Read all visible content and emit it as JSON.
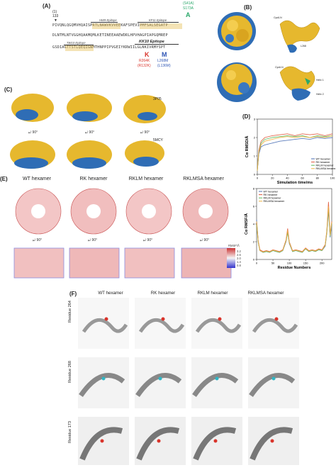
{
  "panelA": {
    "label": "(A)",
    "pos_marker": "(1)",
    "pos_number": "133",
    "epitopes": {
      "hw9": "HW9 Epitope",
      "kf11": "KF11 Epitope",
      "tw10": "TW10 Epitope",
      "kk10": "KK10 Epitope"
    },
    "mutations": {
      "s41a": "(S41A)",
      "s173a": "S173A",
      "a_letter": "A",
      "r264k": "R264K",
      "r132k": "(R132K)",
      "k_letter": "K",
      "l268m": "L268M",
      "l136m": "(L136M)",
      "m_letter": "M"
    },
    "seq1": "PIVQNLQGQMVHQAISPRTLNAWVKVVEEKAFSPEVIPMFSALSEGATP",
    "seq2": "DLNTMLNTVGGHQAAMQMLKETINEEAAEWDRLHPVHAGPIAPGQMREP",
    "seq3": "GSDIAGTTSTLQEQIGWMTHNPPIPVGEIYKRWIILGLNKIVRMYSPT"
  },
  "panelB": {
    "label": "(B)",
    "annotations": [
      "Cys6-N",
      "Cys6-N",
      "L268",
      "Helix 1",
      "Helix 2"
    ]
  },
  "panelC": {
    "label": "(C)",
    "pdb1": "3P05",
    "pdb2": "5MCY"
  },
  "panelD": {
    "label": "(D)"
  },
  "panelE": {
    "label": "(E)",
    "titles": [
      "WT hexamer",
      "RK hexamer",
      "RKLM hexamer",
      "RKLMSA hexamer"
    ],
    "rmsf_scale": "RMSF/Å",
    "scale_ticks": [
      "0.8",
      "1.4",
      "2.0",
      "2.6",
      "3.2"
    ]
  },
  "panelF": {
    "label": "(F)",
    "titles": [
      "WT hexamer",
      "RK hexamer",
      "RKLM hexamer",
      "RKLMSA hexamer"
    ],
    "rows": [
      "Residue 264",
      "Residue 268",
      "Residue 173"
    ]
  },
  "chart_data": [
    {
      "type": "line",
      "title": "",
      "xlabel": "Simulation time/ms",
      "ylabel": "Cα RMSD/Å",
      "xlim": [
        0,
        100
      ],
      "ylim": [
        0,
        3
      ],
      "xticks": [
        "0",
        "20",
        "40",
        "60",
        "80",
        "100"
      ],
      "yticks": [
        "0",
        "1",
        "2",
        "3"
      ],
      "legend_position": "bottom-right",
      "series": [
        {
          "name": "WT hexamer",
          "color": "#4a6fb5",
          "x": [
            0,
            2,
            5,
            10,
            20,
            30,
            40,
            50,
            60,
            70,
            80,
            90,
            100
          ],
          "values": [
            0.2,
            1.1,
            1.5,
            1.6,
            1.7,
            1.8,
            1.85,
            1.9,
            1.95,
            1.9,
            2.0,
            1.95,
            2.0
          ]
        },
        {
          "name": "RK hexamer",
          "color": "#e0563a",
          "x": [
            0,
            2,
            5,
            10,
            20,
            30,
            40,
            50,
            60,
            70,
            80,
            90,
            100
          ],
          "values": [
            0.2,
            1.3,
            1.8,
            2.0,
            2.1,
            2.15,
            2.2,
            2.1,
            2.2,
            2.15,
            2.2,
            2.1,
            2.2
          ]
        },
        {
          "name": "RKLM hexamer",
          "color": "#5cb85c",
          "x": [
            0,
            2,
            5,
            10,
            20,
            30,
            40,
            50,
            60,
            70,
            80,
            90,
            100
          ],
          "values": [
            0.2,
            1.2,
            1.7,
            1.9,
            2.0,
            2.05,
            2.1,
            2.05,
            2.1,
            2.0,
            2.1,
            2.05,
            2.1
          ]
        },
        {
          "name": "RKLMSA hexamer",
          "color": "#f0b040",
          "x": [
            0,
            2,
            5,
            10,
            20,
            30,
            40,
            50,
            60,
            70,
            80,
            90,
            100
          ],
          "values": [
            0.2,
            1.2,
            1.6,
            1.8,
            1.9,
            2.0,
            2.05,
            2.0,
            2.05,
            2.0,
            2.05,
            2.0,
            2.1
          ]
        }
      ]
    },
    {
      "type": "line",
      "title": "",
      "xlabel": "Residue Numbers",
      "ylabel": "Cα RMSF/Å",
      "xlim": [
        0,
        230
      ],
      "ylim": [
        0,
        8
      ],
      "xticks": [
        "0",
        "50",
        "100",
        "150",
        "200"
      ],
      "yticks": [
        "0",
        "2",
        "4",
        "6",
        "8"
      ],
      "legend_position": "top-left",
      "series": [
        {
          "name": "WT hexamer",
          "color": "#4a6fb5",
          "x": [
            0,
            5,
            10,
            20,
            30,
            40,
            50,
            60,
            70,
            80,
            90,
            95,
            100,
            110,
            120,
            130,
            140,
            150,
            160,
            170,
            180,
            190,
            200,
            210,
            215,
            220,
            225,
            230
          ],
          "values": [
            4.5,
            2.0,
            1.0,
            0.8,
            0.9,
            0.8,
            1.0,
            0.9,
            0.8,
            1.0,
            2.0,
            3.2,
            1.8,
            0.9,
            1.0,
            0.9,
            0.8,
            1.2,
            0.9,
            1.0,
            0.9,
            1.1,
            1.0,
            1.5,
            3.0,
            5.5,
            2.5,
            4.0
          ]
        },
        {
          "name": "RK hexamer",
          "color": "#e0563a",
          "x": [
            0,
            5,
            10,
            20,
            30,
            40,
            50,
            60,
            70,
            80,
            90,
            95,
            100,
            110,
            120,
            130,
            140,
            150,
            160,
            170,
            180,
            190,
            200,
            210,
            215,
            220,
            225,
            230
          ],
          "values": [
            4.2,
            2.1,
            1.1,
            0.9,
            1.0,
            0.9,
            1.1,
            1.0,
            0.9,
            1.1,
            2.2,
            3.5,
            2.0,
            1.0,
            1.1,
            1.0,
            0.9,
            1.3,
            1.0,
            1.1,
            1.0,
            1.2,
            1.1,
            1.7,
            3.3,
            6.5,
            2.8,
            4.3
          ]
        },
        {
          "name": "RKLM hexamer",
          "color": "#5cb85c",
          "x": [
            0,
            5,
            10,
            20,
            30,
            40,
            50,
            60,
            70,
            80,
            90,
            95,
            100,
            110,
            120,
            130,
            140,
            150,
            160,
            170,
            180,
            190,
            200,
            210,
            215,
            220,
            225,
            230
          ],
          "values": [
            4.0,
            1.9,
            1.0,
            0.8,
            0.9,
            0.8,
            1.0,
            0.9,
            0.8,
            1.0,
            2.1,
            3.0,
            1.9,
            0.9,
            1.0,
            0.9,
            0.8,
            1.2,
            0.9,
            1.0,
            0.9,
            1.1,
            1.0,
            1.6,
            3.1,
            5.8,
            2.6,
            4.1
          ]
        },
        {
          "name": "RKLMSA hexamer",
          "color": "#f0b040",
          "x": [
            0,
            5,
            10,
            20,
            30,
            40,
            50,
            60,
            70,
            80,
            90,
            95,
            100,
            110,
            120,
            130,
            140,
            150,
            160,
            170,
            180,
            190,
            200,
            210,
            215,
            220,
            225,
            230
          ],
          "values": [
            4.3,
            2.0,
            1.0,
            0.85,
            0.95,
            0.85,
            1.05,
            0.95,
            0.85,
            1.05,
            2.1,
            3.3,
            1.9,
            0.95,
            1.05,
            0.95,
            0.85,
            1.25,
            0.95,
            1.05,
            0.95,
            1.15,
            1.05,
            1.6,
            3.2,
            6.0,
            2.7,
            4.2
          ]
        }
      ]
    }
  ]
}
